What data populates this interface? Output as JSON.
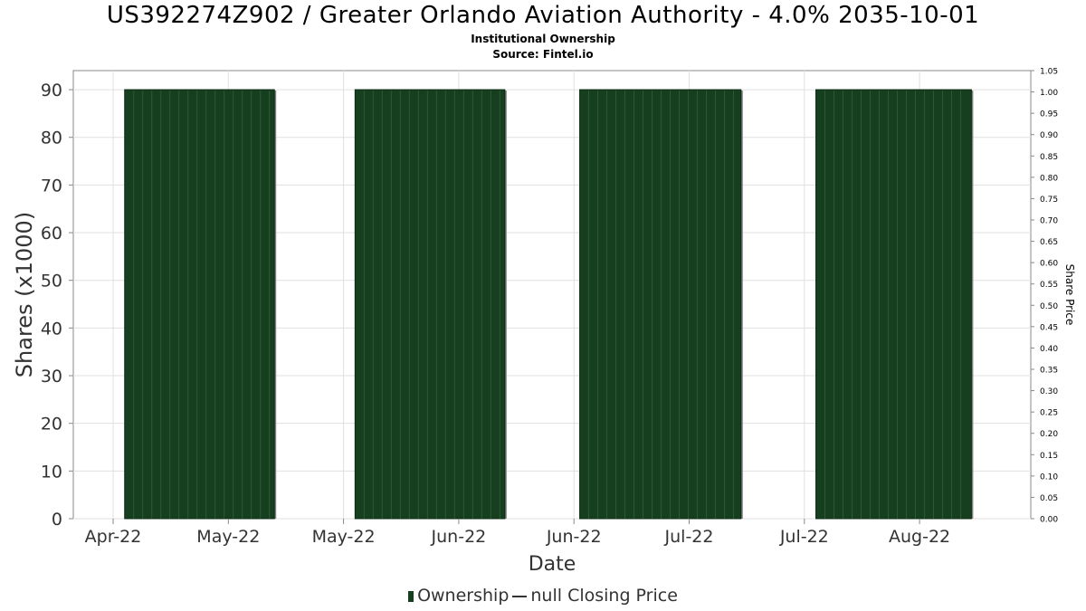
{
  "header": {
    "title": "US392274Z902 / Greater Orlando Aviation Authority - 4.0% 2035-10-01",
    "subtitle_1": "Institutional Ownership",
    "subtitle_2": "Source: Fintel.io"
  },
  "legend": {
    "ownership_label": "Ownership",
    "price_label": "null Closing Price"
  },
  "colors": {
    "bar_fill": "#163f20",
    "bar_stripe": "#2b5a36",
    "bar_shadow": "#808080",
    "grid": "#e0e0e0",
    "axis": "#888888"
  },
  "chart_data": {
    "type": "bar",
    "xlabel": "Date",
    "ylabel": "Shares (x1000)",
    "y2label": "Share Price",
    "ylim": [
      0,
      94
    ],
    "y2lim": [
      0,
      1.05
    ],
    "yticks": [
      0,
      10,
      20,
      30,
      40,
      50,
      60,
      70,
      80,
      90
    ],
    "y2ticks": [
      "0.00",
      "0.05",
      "0.10",
      "0.15",
      "0.20",
      "0.25",
      "0.30",
      "0.35",
      "0.40",
      "0.45",
      "0.50",
      "0.55",
      "0.60",
      "0.65",
      "0.70",
      "0.75",
      "0.80",
      "0.85",
      "0.90",
      "0.95",
      "1.00",
      "1.05"
    ],
    "xticks": [
      "Apr-22",
      "May-22",
      "May-22",
      "Jun-22",
      "Jun-22",
      "Jul-22",
      "Jul-22",
      "Aug-22"
    ],
    "series": [
      {
        "name": "Ownership",
        "bars": [
          {
            "start_tick": 0.1,
            "end_tick": 1.4,
            "value": 90
          },
          {
            "start_tick": 2.1,
            "end_tick": 3.4,
            "value": 90
          },
          {
            "start_tick": 4.05,
            "end_tick": 5.45,
            "value": 90
          },
          {
            "start_tick": 6.1,
            "end_tick": 7.45,
            "value": 90
          }
        ]
      }
    ],
    "grid": true
  }
}
